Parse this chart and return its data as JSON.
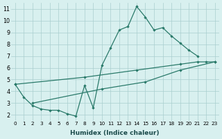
{
  "line_main_x": [
    0,
    1,
    2,
    3,
    4,
    5,
    6,
    7,
    8,
    9,
    10,
    11,
    12,
    13,
    14,
    15,
    16,
    17,
    18,
    19,
    20,
    21
  ],
  "line_main_y": [
    4.6,
    3.5,
    2.8,
    2.5,
    2.4,
    2.4,
    2.1,
    1.9,
    4.5,
    2.6,
    6.2,
    7.7,
    9.2,
    9.5,
    11.2,
    10.3,
    9.2,
    9.4,
    8.7,
    8.1,
    7.5,
    7.0
  ],
  "line_low_x": [
    2,
    10,
    15,
    19,
    23
  ],
  "line_low_y": [
    3.0,
    4.2,
    4.8,
    5.8,
    6.5
  ],
  "line_high_x": [
    0,
    8,
    14,
    19,
    21,
    22,
    23
  ],
  "line_high_y": [
    4.6,
    5.2,
    5.8,
    6.3,
    6.5,
    6.5,
    6.5
  ],
  "xlabel": "Humidex (Indice chaleur)",
  "xlim": [
    -0.5,
    23.5
  ],
  "ylim": [
    1.5,
    11.5
  ],
  "yticks": [
    2,
    3,
    4,
    5,
    6,
    7,
    8,
    9,
    10,
    11
  ],
  "xticks": [
    0,
    1,
    2,
    3,
    4,
    5,
    6,
    7,
    8,
    9,
    10,
    11,
    12,
    13,
    14,
    15,
    16,
    17,
    18,
    19,
    20,
    21,
    22,
    23
  ],
  "line_color": "#2a7a6a",
  "bg_color": "#d8f0ef",
  "grid_color": "#aacece"
}
